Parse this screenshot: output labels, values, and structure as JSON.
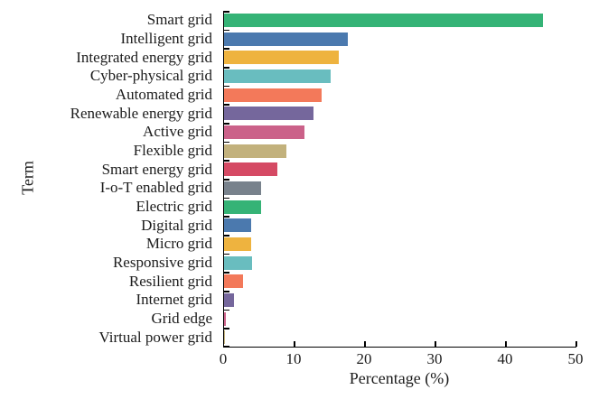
{
  "figure": {
    "background": "#ffffff",
    "axis_color": "#000000",
    "text_color": "#1c1c1c"
  },
  "chart_data": {
    "type": "bar",
    "orientation": "horizontal",
    "title": "",
    "xlabel": "Percentage (%)",
    "ylabel": "Term",
    "xlim": [
      0,
      50
    ],
    "xticks": [
      0,
      10,
      20,
      30,
      40,
      50
    ],
    "grid": false,
    "legend": "none",
    "categories": [
      "Smart grid",
      "Intelligent grid",
      "Integrated energy grid",
      "Cyber-physical grid",
      "Automated grid",
      "Renewable energy grid",
      "Active grid",
      "Flexible grid",
      "Smart energy grid",
      "I-o-T enabled grid",
      "Electric grid",
      "Digital grid",
      "Micro grid",
      "Responsive grid",
      "Resilient grid",
      "Internet grid",
      "Grid edge",
      "Virtual power grid"
    ],
    "values": [
      45.2,
      17.5,
      16.3,
      15.1,
      13.9,
      12.7,
      11.4,
      8.8,
      7.6,
      5.3,
      5.2,
      3.9,
      3.9,
      4.0,
      2.7,
      1.4,
      0.2,
      0.1
    ],
    "bar_colors": [
      "#35b376",
      "#4b79ae",
      "#eeb33f",
      "#69bdbf",
      "#f3795a",
      "#75679c",
      "#cb6189",
      "#c2b17c",
      "#d54a64",
      "#78828c",
      "#35b376",
      "#4b79ae",
      "#eeb33f",
      "#69bdbf",
      "#f3795a",
      "#75679c",
      "#cb6189",
      "#c2b17c"
    ]
  }
}
